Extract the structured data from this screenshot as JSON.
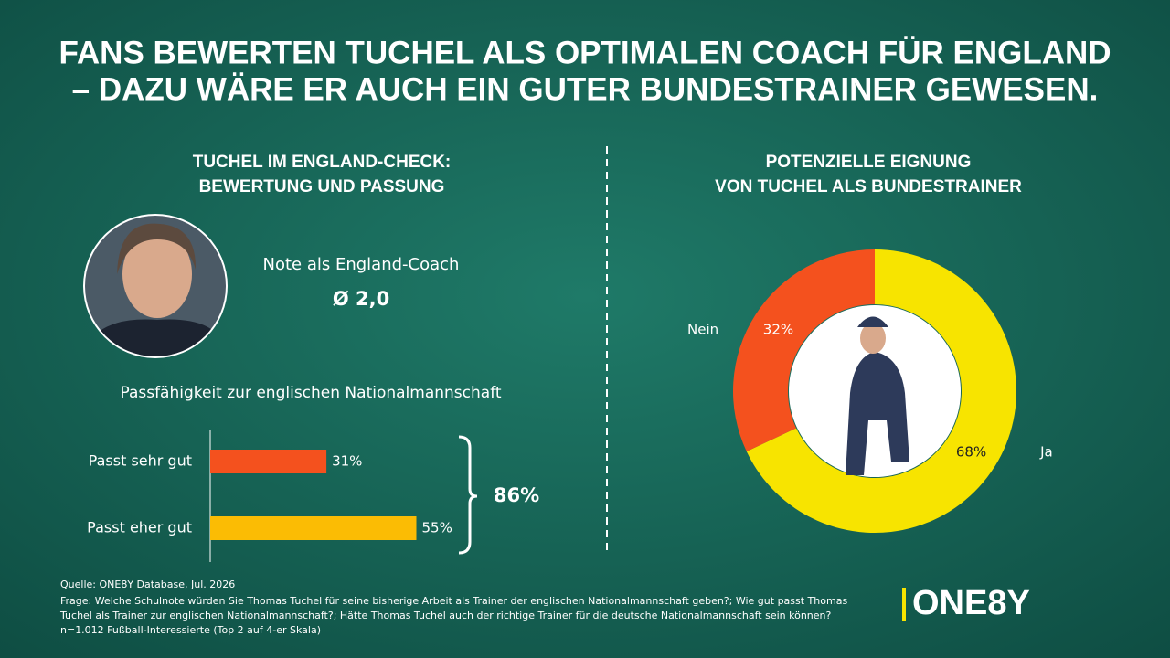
{
  "headline": [
    "FANS BEWERTEN TUCHEL ALS OPTIMALEN COACH FÜR ENGLAND",
    "– DAZU WÄRE ER AUCH EIN GUTER BUNDESTRAINER GEWESEN."
  ],
  "grade_title": "Note als England-Coach",
  "grade": "Ø 2,0",
  "chart_data": [
    {
      "type": "bar",
      "orientation": "horizontal",
      "title": [
        "TUCHEL IM ENGLAND-CHECK:",
        "BEWERTUNG UND PASSUNG"
      ],
      "subtitle": "Passfähigkeit zur englischen Nationalmannschaft",
      "categories": [
        "Passt sehr gut",
        "Passt eher gut"
      ],
      "values": [
        31,
        55
      ],
      "value_labels": [
        "31%",
        "55%"
      ],
      "colors": [
        "#f4511e",
        "#fbbc04"
      ],
      "total": {
        "value": 86,
        "label": "86%"
      }
    },
    {
      "type": "donut",
      "title": [
        "POTENZIELLE EIGNUNG",
        "VON TUCHEL ALS BUNDESTRAINER"
      ],
      "categories": [
        "Ja",
        "Nein"
      ],
      "values": [
        68,
        32
      ],
      "value_labels": [
        "68%",
        "32%"
      ],
      "colors": [
        "#f7e400",
        "#f4511e"
      ]
    }
  ],
  "footer": [
    "Quelle: ONE8Y Database, Jul. 2026",
    "Frage: Welche Schulnote würden Sie Thomas Tuchel für seine bisherige Arbeit als Trainer der englischen Nationalmannschaft geben?; Wie gut passt Thomas",
    "Tuchel als Trainer zur englischen Nationalmannschaft?; Hätte Thomas Tuchel auch der richtige Trainer für die deutsche Nationalmannschaft sein können?",
    "n=1.012 Fußball-Interessierte (Top 2 auf 4-er Skala)"
  ],
  "logo": "ONE8Y"
}
